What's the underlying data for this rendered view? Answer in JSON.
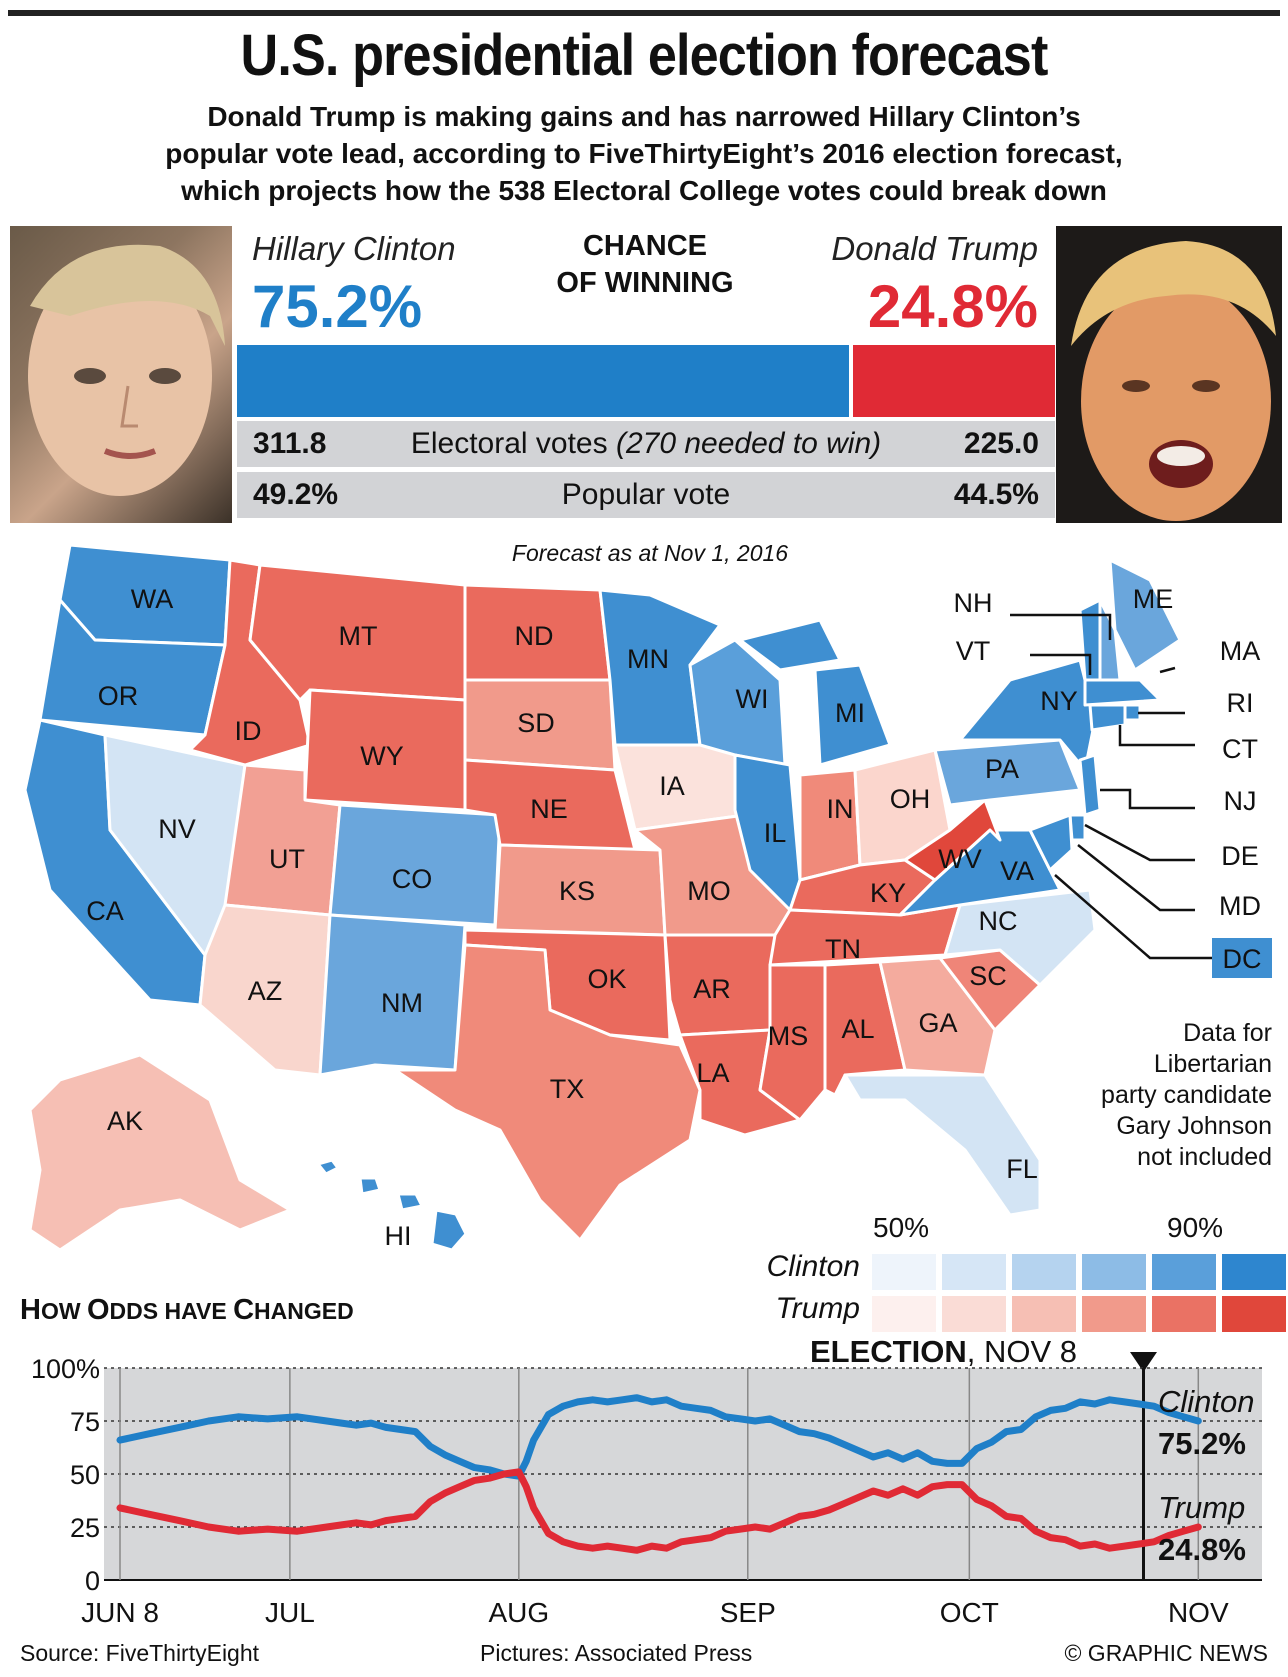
{
  "header": {
    "title": "U.S. presidential election forecast",
    "subtitle_lines": [
      "Donald Trump is making gains and has narrowed Hillary Clinton’s",
      "popular vote lead, according to FiveThirtyEight’s 2016 election forecast,",
      "which projects how the 538 Electoral College votes could break down"
    ]
  },
  "summary": {
    "clinton_name": "Hillary Clinton",
    "trump_name": "Donald Trump",
    "clinton_pct": "75.2%",
    "trump_pct": "24.8%",
    "chance_line1": "CHANCE",
    "chance_line2": "OF WINNING",
    "clinton_chance": 75.2,
    "trump_chance": 24.8,
    "electoral_label": "Electoral votes",
    "electoral_note": "(270 needed to win)",
    "clinton_ev": "311.8",
    "trump_ev": "225.0",
    "popular_label": "Popular vote",
    "clinton_pop": "49.2%",
    "trump_pop": "44.5%",
    "colors": {
      "clinton": "#1f7fc8",
      "trump": "#e02a35"
    }
  },
  "map": {
    "forecast_date": "Forecast as at Nov 1, 2016",
    "states": [
      "WA",
      "OR",
      "CA",
      "NV",
      "ID",
      "MT",
      "WY",
      "UT",
      "AZ",
      "CO",
      "NM",
      "ND",
      "SD",
      "NE",
      "KS",
      "OK",
      "TX",
      "MN",
      "IA",
      "MO",
      "AR",
      "LA",
      "WI",
      "IL",
      "MI",
      "IN",
      "OH",
      "KY",
      "TN",
      "MS",
      "AL",
      "GA",
      "FL",
      "SC",
      "NC",
      "VA",
      "WV",
      "PA",
      "NY",
      "ME",
      "NH",
      "VT",
      "MA",
      "RI",
      "CT",
      "NJ",
      "DE",
      "MD",
      "DC",
      "AK",
      "HI"
    ],
    "note_lines": [
      "Data for",
      "Libertarian",
      "party candidate",
      "Gary Johnson",
      "not included"
    ],
    "legend": {
      "low": "50%",
      "high": "90%",
      "clinton_label": "Clinton",
      "trump_label": "Trump",
      "clinton_colors": [
        "#eef4fb",
        "#d6e6f6",
        "#b5d3ef",
        "#8dbce6",
        "#5a9fda",
        "#2e86cf"
      ],
      "trump_colors": [
        "#fdf0ee",
        "#fadcd6",
        "#f6bfb4",
        "#f19a8b",
        "#ea7264",
        "#e0473b"
      ]
    }
  },
  "odds": {
    "title_big1": "H",
    "title_small1": "OW ",
    "title_big2": "O",
    "title_small2": "DDS HAVE ",
    "title_big3": "C",
    "title_small3": "HANGED",
    "election_bold": "ELECTION",
    "election_rest": ", NOV 8",
    "clinton_label": "Clinton",
    "clinton_value": "75.2%",
    "trump_label": "Trump",
    "trump_value": "24.8%"
  },
  "chart_data": {
    "type": "line",
    "title": "How Odds have Changed",
    "xlabel": "",
    "ylabel": "",
    "ylim": [
      0,
      100
    ],
    "y_ticks": [
      "100%",
      "75",
      "50",
      "25",
      "0"
    ],
    "x_ticks": [
      "JUN 8",
      "JUL",
      "AUG",
      "SEP",
      "OCT",
      "NOV"
    ],
    "x_tick_days": [
      0,
      23,
      54,
      85,
      115,
      146
    ],
    "x_domain_days": [
      0,
      153
    ],
    "grid": true,
    "legend": "right",
    "series": [
      {
        "name": "Clinton",
        "color": "#1f7fc8",
        "days": [
          0,
          4,
          8,
          12,
          16,
          20,
          24,
          28,
          30,
          32,
          34,
          36,
          38,
          40,
          42,
          44,
          46,
          48,
          50,
          52,
          54,
          55,
          56,
          57,
          58,
          60,
          62,
          64,
          66,
          68,
          70,
          72,
          74,
          76,
          78,
          80,
          82,
          84,
          86,
          88,
          90,
          92,
          94,
          96,
          98,
          100,
          102,
          104,
          106,
          108,
          110,
          112,
          114,
          116,
          118,
          120,
          122,
          124,
          126,
          128,
          130,
          132,
          134,
          136,
          138,
          140,
          142,
          144,
          146
        ],
        "values": [
          66,
          69,
          72,
          75,
          77,
          76,
          77,
          75,
          74,
          73,
          74,
          72,
          71,
          70,
          63,
          59,
          56,
          53,
          52,
          50,
          49,
          56,
          66,
          72,
          78,
          82,
          84,
          85,
          84,
          85,
          86,
          84,
          85,
          82,
          81,
          80,
          77,
          76,
          75,
          76,
          73,
          70,
          69,
          67,
          64,
          61,
          58,
          60,
          57,
          60,
          56,
          55,
          55,
          62,
          65,
          70,
          71,
          77,
          80,
          81,
          84,
          83,
          85,
          84,
          83,
          82,
          79,
          77,
          75
        ]
      },
      {
        "name": "Trump",
        "color": "#e02a35",
        "days": [
          0,
          4,
          8,
          12,
          16,
          20,
          24,
          28,
          30,
          32,
          34,
          36,
          38,
          40,
          42,
          44,
          46,
          48,
          50,
          52,
          54,
          55,
          56,
          57,
          58,
          60,
          62,
          64,
          66,
          68,
          70,
          72,
          74,
          76,
          78,
          80,
          82,
          84,
          86,
          88,
          90,
          92,
          94,
          96,
          98,
          100,
          102,
          104,
          106,
          108,
          110,
          112,
          114,
          116,
          118,
          120,
          122,
          124,
          126,
          128,
          130,
          132,
          134,
          136,
          138,
          140,
          142,
          144,
          146
        ],
        "values": [
          34,
          31,
          28,
          25,
          23,
          24,
          23,
          25,
          26,
          27,
          26,
          28,
          29,
          30,
          37,
          41,
          44,
          47,
          48,
          50,
          51,
          44,
          34,
          28,
          22,
          18,
          16,
          15,
          16,
          15,
          14,
          16,
          15,
          18,
          19,
          20,
          23,
          24,
          25,
          24,
          27,
          30,
          31,
          33,
          36,
          39,
          42,
          40,
          43,
          40,
          44,
          45,
          45,
          38,
          35,
          30,
          29,
          23,
          20,
          19,
          16,
          17,
          15,
          16,
          17,
          18,
          21,
          23,
          25
        ]
      }
    ]
  },
  "footer": {
    "source": "Source: FiveThirtyEight",
    "pictures": "Pictures: Associated Press",
    "credit": "© GRAPHIC NEWS"
  }
}
